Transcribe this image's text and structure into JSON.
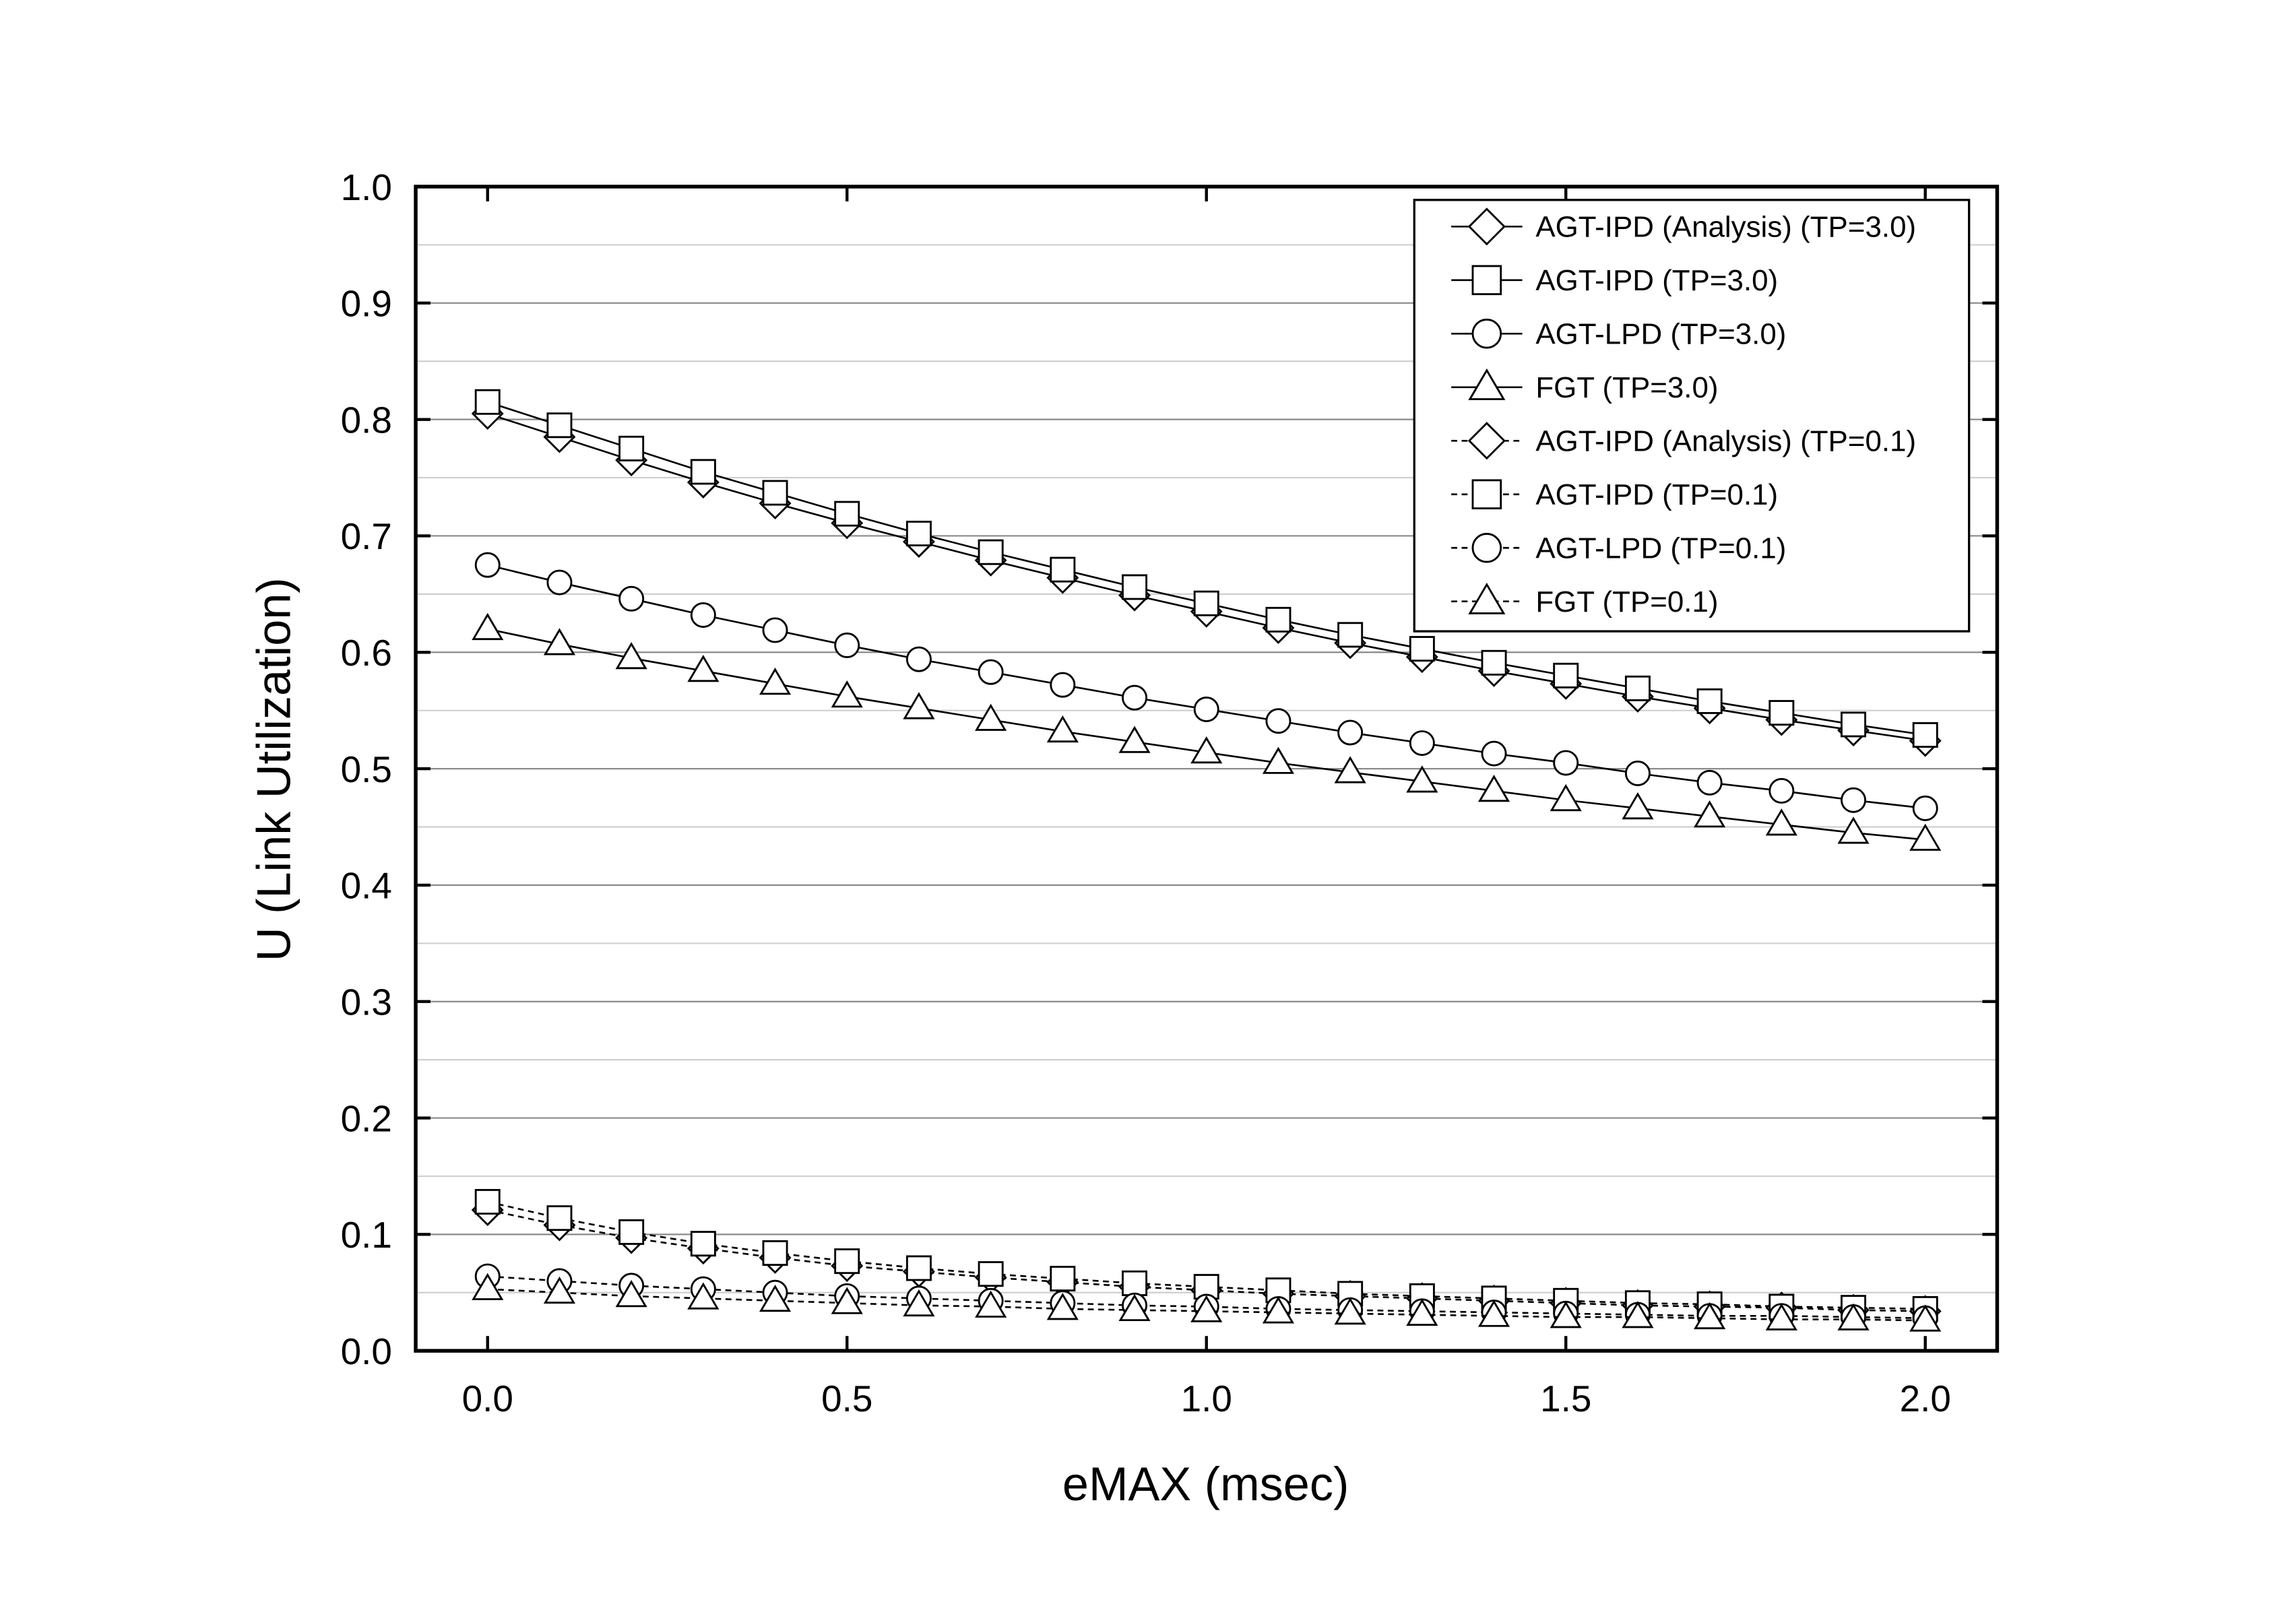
{
  "chart_data": {
    "type": "line",
    "x_label": "eMAX (msec)",
    "y_label": "U (Link Utilization)",
    "x": [
      0,
      0.1,
      0.2,
      0.3,
      0.4,
      0.5,
      0.6,
      0.7,
      0.8,
      0.9,
      1.0,
      1.1,
      1.2,
      1.3,
      1.4,
      1.5,
      1.6,
      1.7,
      1.8,
      1.9,
      2.0
    ],
    "series": [
      {
        "name": "AGT-IPD (Analysis) (TP=3.0)",
        "color": "#000000",
        "marker": "diamond",
        "dashed": false,
        "values": [
          0.805,
          0.785,
          0.765,
          0.746,
          0.728,
          0.711,
          0.695,
          0.679,
          0.664,
          0.649,
          0.635,
          0.621,
          0.608,
          0.596,
          0.584,
          0.573,
          0.562,
          0.552,
          0.542,
          0.533,
          0.524
        ]
      },
      {
        "name": "AGT-IPD (TP=3.0)",
        "color": "#000000",
        "marker": "square",
        "dashed": false,
        "values": [
          0.815,
          0.795,
          0.775,
          0.755,
          0.737,
          0.719,
          0.702,
          0.686,
          0.671,
          0.656,
          0.642,
          0.628,
          0.615,
          0.603,
          0.591,
          0.58,
          0.569,
          0.558,
          0.548,
          0.538,
          0.529
        ]
      },
      {
        "name": "AGT-LPD (TP=3.0)",
        "color": "#000000",
        "marker": "circle",
        "dashed": false,
        "values": [
          0.675,
          0.66,
          0.646,
          0.632,
          0.619,
          0.606,
          0.594,
          0.583,
          0.572,
          0.561,
          0.551,
          0.541,
          0.531,
          0.522,
          0.513,
          0.505,
          0.496,
          0.488,
          0.481,
          0.473,
          0.466
        ]
      },
      {
        "name": "FGT (TP=3.0)",
        "color": "#000000",
        "marker": "triangle",
        "dashed": false,
        "values": [
          0.62,
          0.607,
          0.595,
          0.584,
          0.573,
          0.562,
          0.552,
          0.542,
          0.532,
          0.523,
          0.514,
          0.505,
          0.497,
          0.489,
          0.481,
          0.473,
          0.466,
          0.459,
          0.452,
          0.445,
          0.439
        ]
      },
      {
        "name": "AGT-IPD (Analysis) (TP=0.1)",
        "color": "#000000",
        "marker": "diamond",
        "dashed": true,
        "values": [
          0.121,
          0.108,
          0.097,
          0.088,
          0.08,
          0.073,
          0.068,
          0.063,
          0.059,
          0.055,
          0.052,
          0.049,
          0.047,
          0.045,
          0.043,
          0.041,
          0.039,
          0.038,
          0.037,
          0.035,
          0.034
        ]
      },
      {
        "name": "AGT-IPD (TP=0.1)",
        "color": "#000000",
        "marker": "square",
        "dashed": true,
        "values": [
          0.128,
          0.114,
          0.102,
          0.092,
          0.084,
          0.077,
          0.071,
          0.066,
          0.062,
          0.058,
          0.055,
          0.052,
          0.049,
          0.047,
          0.045,
          0.043,
          0.041,
          0.04,
          0.038,
          0.037,
          0.036
        ]
      },
      {
        "name": "AGT-LPD (TP=0.1)",
        "color": "#000000",
        "marker": "circle",
        "dashed": true,
        "values": [
          0.064,
          0.06,
          0.056,
          0.053,
          0.05,
          0.047,
          0.045,
          0.043,
          0.041,
          0.039,
          0.038,
          0.036,
          0.035,
          0.034,
          0.033,
          0.032,
          0.031,
          0.03,
          0.03,
          0.029,
          0.028
        ]
      },
      {
        "name": "FGT (TP=0.1)",
        "color": "#000000",
        "marker": "triangle",
        "dashed": true,
        "values": [
          0.053,
          0.05,
          0.047,
          0.045,
          0.043,
          0.041,
          0.039,
          0.038,
          0.036,
          0.035,
          0.034,
          0.033,
          0.032,
          0.031,
          0.03,
          0.029,
          0.029,
          0.028,
          0.027,
          0.027,
          0.026
        ]
      }
    ],
    "xlim": [
      -0.1,
      2.1
    ],
    "xticks": [
      {
        "value": 0,
        "label": "0.0"
      },
      0.5,
      {
        "value": 1,
        "label": "1.0"
      },
      1.5,
      {
        "value": 2,
        "label": "2.0"
      }
    ],
    "ylim": [
      0,
      1
    ],
    "yticks": [
      {
        "value": 0,
        "label": "0.0"
      },
      0.1,
      0.2,
      0.3,
      0.4,
      0.5,
      0.6,
      0.7,
      0.8,
      0.9,
      {
        "value": 1,
        "label": "1.0"
      }
    ],
    "minor_yticks": [
      0.05,
      0.15,
      0.25,
      0.35,
      0.45,
      0.55,
      0.65,
      0.75,
      0.85,
      0.95
    ],
    "grid": true,
    "legend": "upper right"
  }
}
